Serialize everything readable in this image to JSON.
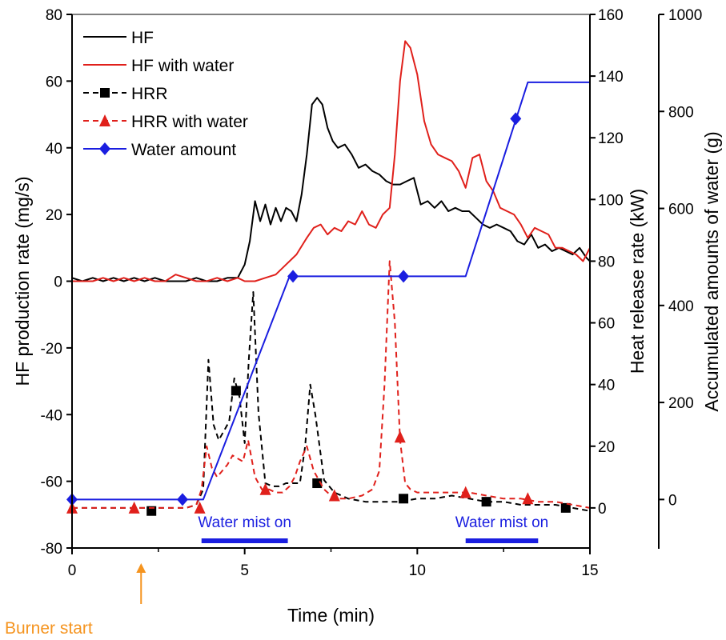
{
  "chart_data": {
    "type": "line",
    "xlabel": "Time (min)",
    "xlim": [
      0,
      15
    ],
    "x_ticks": [
      "0",
      "5",
      "10",
      "15"
    ],
    "axes": {
      "left": {
        "label": "HF production rate (mg/s)",
        "lim": [
          -80,
          80
        ],
        "ticks": [
          "-80",
          "-60",
          "-40",
          "-20",
          "0",
          "20",
          "40",
          "60",
          "80"
        ]
      },
      "right1": {
        "label": "Heat release rate (kW)",
        "lim": [
          -13,
          160
        ],
        "ticks": [
          "0",
          "20",
          "40",
          "60",
          "80",
          "100",
          "120",
          "140",
          "160"
        ]
      },
      "right2": {
        "label": "Accumulated amounts of water (g)",
        "lim": [
          -100,
          1000
        ],
        "ticks": [
          "0",
          "200",
          "400",
          "600",
          "800",
          "1000"
        ]
      }
    },
    "series": [
      {
        "name": "HF",
        "axis": "left",
        "color": "#000000",
        "style": "solid",
        "marker": "none",
        "x": [
          0,
          0.3,
          0.6,
          0.9,
          1.2,
          1.5,
          1.8,
          2.1,
          2.4,
          2.7,
          3.0,
          3.3,
          3.6,
          3.9,
          4.2,
          4.5,
          4.8,
          5.0,
          5.15,
          5.3,
          5.45,
          5.6,
          5.75,
          5.9,
          6.05,
          6.2,
          6.35,
          6.5,
          6.65,
          6.8,
          6.95,
          7.1,
          7.25,
          7.4,
          7.55,
          7.7,
          7.9,
          8.1,
          8.3,
          8.5,
          8.7,
          8.9,
          9.1,
          9.3,
          9.5,
          9.7,
          9.9,
          10.1,
          10.3,
          10.5,
          10.7,
          10.9,
          11.1,
          11.3,
          11.5,
          11.7,
          11.9,
          12.1,
          12.3,
          12.5,
          12.7,
          12.9,
          13.1,
          13.3,
          13.5,
          13.7,
          13.9,
          14.1,
          14.3,
          14.5,
          14.7,
          14.9,
          15.0
        ],
        "y": [
          1,
          0,
          1,
          0,
          1,
          0,
          1,
          0,
          1,
          0,
          0,
          0,
          1,
          0,
          0,
          1,
          1,
          5,
          12,
          24,
          18,
          23,
          17,
          22,
          18,
          22,
          21,
          18,
          26,
          38,
          53,
          55,
          53,
          46,
          42,
          40,
          41,
          38,
          34,
          35,
          33,
          32,
          30,
          29,
          29,
          30,
          31,
          23,
          24,
          22,
          24,
          21,
          22,
          21,
          21,
          19,
          17,
          16,
          17,
          16,
          15,
          12,
          11,
          14,
          10,
          11,
          9,
          10,
          9,
          8,
          10,
          7,
          6
        ]
      },
      {
        "name": "HF with water",
        "axis": "left",
        "color": "#e0201b",
        "style": "solid",
        "marker": "none",
        "x": [
          0,
          0.3,
          0.6,
          0.9,
          1.2,
          1.5,
          1.8,
          2.1,
          2.4,
          2.7,
          3.0,
          3.3,
          3.6,
          3.9,
          4.2,
          4.5,
          4.8,
          5.0,
          5.3,
          5.6,
          5.9,
          6.2,
          6.5,
          6.8,
          7.0,
          7.2,
          7.4,
          7.6,
          7.8,
          8.0,
          8.2,
          8.4,
          8.6,
          8.8,
          9.0,
          9.2,
          9.35,
          9.5,
          9.65,
          9.8,
          10.0,
          10.2,
          10.4,
          10.6,
          10.8,
          11.0,
          11.2,
          11.4,
          11.6,
          11.8,
          12.0,
          12.2,
          12.4,
          12.6,
          12.8,
          13.0,
          13.2,
          13.4,
          13.6,
          13.8,
          14.0,
          14.2,
          14.4,
          14.6,
          14.8,
          15.0
        ],
        "y": [
          0,
          0,
          0,
          1,
          0,
          1,
          0,
          1,
          0,
          0,
          2,
          1,
          0,
          0,
          1,
          0,
          1,
          0,
          0,
          1,
          2,
          5,
          8,
          13,
          16,
          17,
          14,
          16,
          15,
          18,
          17,
          21,
          17,
          16,
          20,
          22,
          38,
          60,
          72,
          70,
          62,
          48,
          41,
          38,
          37,
          36,
          33,
          28,
          37,
          38,
          30,
          27,
          22,
          21,
          20,
          17,
          13,
          16,
          15,
          14,
          10,
          10,
          9,
          8,
          6,
          10
        ]
      },
      {
        "name": "HRR",
        "axis": "right1",
        "color": "#000000",
        "style": "dashed",
        "marker": "square",
        "x": [
          0,
          0.5,
          1.0,
          1.5,
          2.0,
          2.3,
          2.6,
          3.0,
          3.3,
          3.6,
          3.8,
          3.95,
          4.1,
          4.25,
          4.4,
          4.55,
          4.7,
          4.85,
          5.0,
          5.12,
          5.25,
          5.4,
          5.6,
          5.8,
          6.0,
          6.2,
          6.4,
          6.6,
          6.75,
          6.9,
          7.05,
          7.3,
          7.6,
          8.0,
          8.5,
          9.0,
          9.5,
          10.0,
          10.5,
          11.0,
          11.5,
          12.0,
          12.5,
          13.0,
          13.5,
          14.0,
          14.5,
          15.0
        ],
        "y": [
          0,
          0,
          0,
          0,
          0,
          0,
          0,
          0,
          0,
          1,
          6,
          48,
          27,
          22,
          25,
          28,
          42,
          36,
          21,
          48,
          70,
          31,
          8,
          7,
          7,
          8,
          8,
          8,
          20,
          40,
          30,
          9,
          5,
          3,
          2,
          2,
          2,
          3,
          3,
          4,
          3,
          2,
          2,
          1,
          1,
          1,
          0,
          -1
        ],
        "markers_x": [
          2.3,
          4.75,
          7.1,
          9.6,
          12.0,
          14.3
        ],
        "markers_y": [
          -1,
          38,
          8,
          3,
          2,
          0
        ]
      },
      {
        "name": "HRR with water",
        "axis": "right1",
        "color": "#e0201b",
        "style": "dashed",
        "marker": "triangle",
        "x": [
          0,
          0.5,
          1.0,
          1.5,
          2.0,
          2.5,
          3.0,
          3.3,
          3.6,
          3.75,
          3.9,
          4.05,
          4.2,
          4.35,
          4.5,
          4.65,
          4.8,
          4.95,
          5.1,
          5.3,
          5.5,
          5.7,
          5.9,
          6.1,
          6.3,
          6.45,
          6.6,
          6.8,
          7.0,
          7.3,
          7.6,
          8.0,
          8.4,
          8.7,
          8.9,
          9.05,
          9.2,
          9.35,
          9.5,
          9.65,
          9.8,
          10.0,
          10.5,
          11.0,
          11.5,
          12.0,
          12.5,
          13.0,
          13.5,
          14.0,
          14.5,
          15.0
        ],
        "y": [
          0,
          0,
          0,
          0,
          0,
          0,
          0,
          0,
          1,
          6,
          20,
          13,
          10,
          12,
          14,
          17,
          16,
          15,
          22,
          10,
          6,
          6,
          5,
          5,
          7,
          10,
          15,
          20,
          12,
          6,
          3,
          3,
          4,
          6,
          12,
          40,
          80,
          60,
          22,
          8,
          6,
          5,
          5,
          5,
          5,
          4,
          3,
          3,
          2,
          2,
          1,
          0
        ],
        "markers_x": [
          0.0,
          1.8,
          3.7,
          5.6,
          7.6,
          9.5,
          11.4,
          13.2
        ],
        "markers_y": [
          0,
          0,
          0,
          6,
          4,
          23,
          5,
          3
        ]
      },
      {
        "name": "Water amount",
        "axis": "right2",
        "color": "#1a1ee0",
        "style": "solid",
        "marker": "diamond",
        "x": [
          0,
          1.0,
          2.0,
          3.0,
          3.8,
          6.3,
          6.5,
          7.5,
          8.5,
          9.5,
          10.5,
          11.4,
          13.2,
          13.5,
          14.0,
          15.0
        ],
        "y": [
          0,
          0,
          0,
          0,
          0,
          460,
          460,
          460,
          460,
          460,
          460,
          460,
          860,
          860,
          860,
          860
        ],
        "markers_x": [
          0,
          3.2,
          6.4,
          9.6,
          12.85
        ],
        "markers_y": [
          0,
          0,
          460,
          460,
          785
        ]
      }
    ],
    "annotations": [
      {
        "text": "Water mist on",
        "x_start": 3.75,
        "x_end": 6.25,
        "color": "#1a1ee0"
      },
      {
        "text": "Water mist on",
        "x_start": 11.4,
        "x_end": 13.5,
        "color": "#1a1ee0"
      },
      {
        "text": "Burner start",
        "x": 2.0,
        "color": "#f5941f"
      }
    ],
    "legend": {
      "position": "top-left"
    }
  }
}
